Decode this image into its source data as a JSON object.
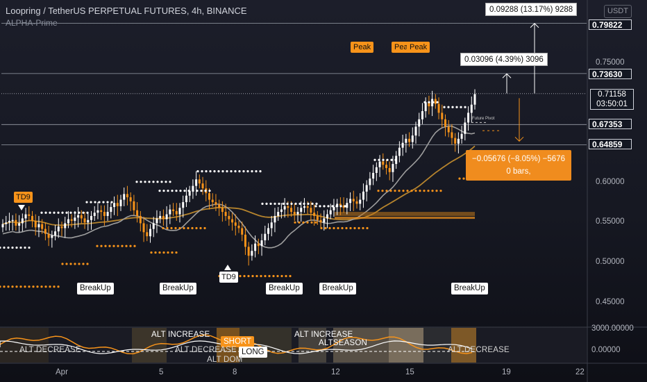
{
  "header": {
    "title": "Loopring / TetherUS PERPETUAL FUTURES, 4h, BINANCE",
    "indicator": "ALPHA-Prime",
    "currency_badge": "USDT"
  },
  "price_axis": {
    "ticks": [
      "0.75000",
      "0.60000",
      "0.55000",
      "0.50000",
      "0.45000"
    ],
    "labels": [
      "0.79822",
      "0.73630",
      "0.67353",
      "0.64859"
    ],
    "current_price": "0.71158",
    "countdown": "03:50:01"
  },
  "indicator_axis": {
    "ticks": [
      "3000.00000",
      "0.00000"
    ]
  },
  "time_axis": {
    "ticks": [
      "Apr",
      "5",
      "8",
      "12",
      "15",
      "19",
      "22"
    ]
  },
  "measures": {
    "long_measure": "0.09288 (13.17%) 9288",
    "short_measure": "0.03096 (4.39%) 3096",
    "down_measure_line1": "−0.05676 (−8.05%) −5676",
    "down_measure_line2": "0 bars,"
  },
  "labels": {
    "peak": [
      "Peak",
      "Peak",
      "Peak"
    ],
    "breakup": [
      "BreakUp",
      "BreakUp",
      "BreakUp",
      "BreakUp",
      "BreakUp"
    ],
    "td9_top": "TD9",
    "td9_bottom": "TD9",
    "future_pivot": "Future Pivot"
  },
  "indicator_panel": {
    "labels": [
      "ALT INCREASE",
      "ALT INCREASE",
      "ALTSEASON",
      "SHORT",
      "LONG",
      "ALT DECREASE",
      "ALT DECREASE",
      "ALT DECREASE",
      "ALT DOM"
    ]
  },
  "colors": {
    "up": "#ffffff",
    "down": "#f7931a",
    "accent": "#f7931a",
    "background": "#131722",
    "ma": "#9e9e9e"
  },
  "chart_data": {
    "type": "candlestick",
    "symbol": "Loopring / TetherUS PERPETUAL FUTURES",
    "timeframe": "4h",
    "exchange": "BINANCE",
    "x_ticks": [
      "Apr",
      "5",
      "8",
      "12",
      "15",
      "19",
      "22"
    ],
    "y_ticks": [
      0.75,
      0.6,
      0.55,
      0.5,
      0.45
    ],
    "ylim": [
      0.425,
      0.82
    ],
    "candles_close": [
      0.551,
      0.553,
      0.555,
      0.556,
      0.549,
      0.552,
      0.558,
      0.563,
      0.561,
      0.555,
      0.547,
      0.551,
      0.545,
      0.539,
      0.534,
      0.537,
      0.542,
      0.548,
      0.546,
      0.552,
      0.557,
      0.555,
      0.559,
      0.562,
      0.558,
      0.553,
      0.556,
      0.561,
      0.565,
      0.568,
      0.566,
      0.561,
      0.566,
      0.572,
      0.577,
      0.573,
      0.581,
      0.588,
      0.584,
      0.579,
      0.568,
      0.561,
      0.552,
      0.541,
      0.536,
      0.545,
      0.552,
      0.558,
      0.561,
      0.557,
      0.563,
      0.569,
      0.567,
      0.563,
      0.571,
      0.578,
      0.586,
      0.592,
      0.598,
      0.606,
      0.601,
      0.595,
      0.589,
      0.581,
      0.578,
      0.575,
      0.571,
      0.566,
      0.561,
      0.557,
      0.553,
      0.549,
      0.546,
      0.538,
      0.523,
      0.512,
      0.518,
      0.527,
      0.524,
      0.531,
      0.539,
      0.546,
      0.553,
      0.561,
      0.566,
      0.569,
      0.573,
      0.571,
      0.566,
      0.563,
      0.566,
      0.571,
      0.573,
      0.571,
      0.565,
      0.561,
      0.556,
      0.553,
      0.558,
      0.563,
      0.568,
      0.572,
      0.576,
      0.574,
      0.571,
      0.577,
      0.582,
      0.579,
      0.576,
      0.581,
      0.591,
      0.599,
      0.607,
      0.614,
      0.621,
      0.628,
      0.624,
      0.62,
      0.615,
      0.625,
      0.635,
      0.645,
      0.651,
      0.656,
      0.652,
      0.66,
      0.671,
      0.68,
      0.69,
      0.701,
      0.696,
      0.705,
      0.699,
      0.688,
      0.68,
      0.671,
      0.664,
      0.657,
      0.65,
      0.656,
      0.662,
      0.676,
      0.688,
      0.698,
      0.711
    ],
    "last_price": 0.71158,
    "levels": [
      0.79822,
      0.7363,
      0.67353,
      0.64859
    ],
    "measures": [
      {
        "change": 0.09288,
        "percent": 13.17,
        "ticks": 9288
      },
      {
        "change": 0.03096,
        "percent": 4.39,
        "ticks": 3096
      },
      {
        "change": -0.05676,
        "percent": -8.05,
        "ticks": -5676,
        "bars": 0
      }
    ],
    "indicator_ticks": [
      3000.0,
      0.0
    ],
    "grid": false
  }
}
